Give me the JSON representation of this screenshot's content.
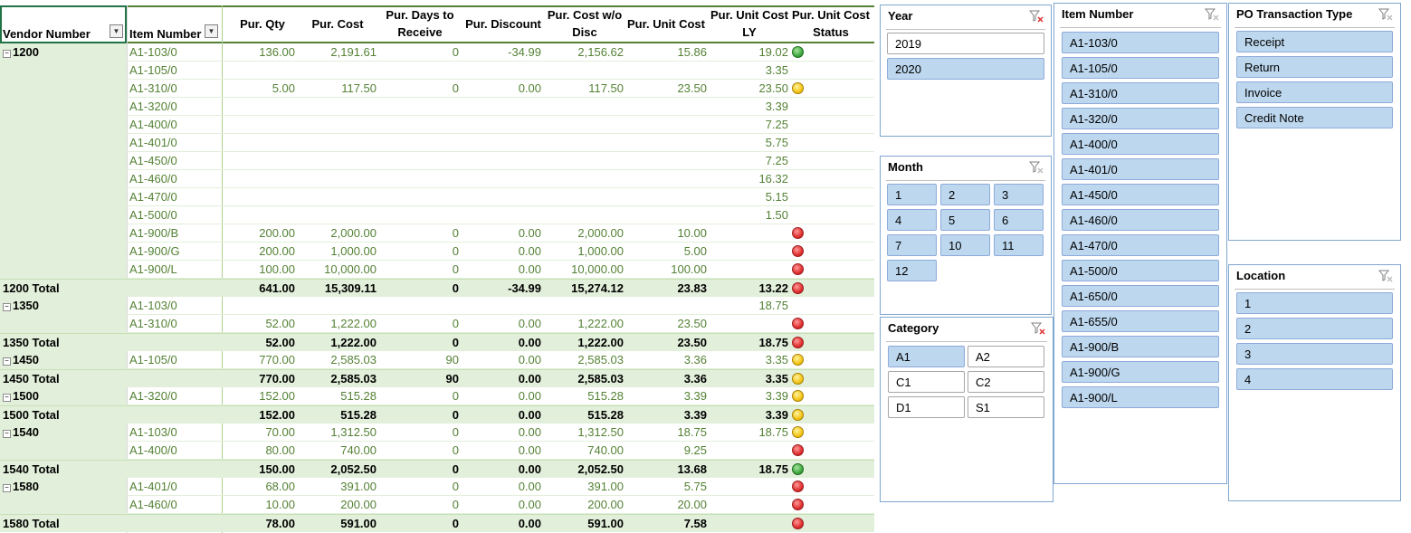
{
  "columns": {
    "vendor_number": "Vendor Number",
    "item_number": "Item Number",
    "pur_qty": "Pur. Qty",
    "pur_cost": "Pur. Cost",
    "pur_days_l1": "Pur. Days to",
    "pur_days_l2": "Receive",
    "pur_discount": "Pur. Discount",
    "pur_cost_wo_l1": "Pur. Cost w/o",
    "pur_cost_wo_l2": "Disc",
    "pur_unit_cost": "Pur. Unit Cost",
    "pur_unit_ly_l1": "Pur. Unit Cost",
    "pur_unit_ly_l2": "LY",
    "status_l1": "Pur. Unit Cost",
    "status_l2": "Status"
  },
  "rows": [
    {
      "type": "data",
      "vendor": "1200",
      "item": "A1-103/0",
      "qty": "136.00",
      "cost": "2,191.61",
      "days": "0",
      "disc": "-34.99",
      "wo": "2,156.62",
      "unit": "15.86",
      "ly": "19.02",
      "status": "green"
    },
    {
      "type": "data",
      "vendor": "",
      "item": "A1-105/0",
      "qty": "",
      "cost": "",
      "days": "",
      "disc": "",
      "wo": "",
      "unit": "",
      "ly": "3.35",
      "status": ""
    },
    {
      "type": "data",
      "vendor": "",
      "item": "A1-310/0",
      "qty": "5.00",
      "cost": "117.50",
      "days": "0",
      "disc": "0.00",
      "wo": "117.50",
      "unit": "23.50",
      "ly": "23.50",
      "status": "yellow"
    },
    {
      "type": "data",
      "vendor": "",
      "item": "A1-320/0",
      "qty": "",
      "cost": "",
      "days": "",
      "disc": "",
      "wo": "",
      "unit": "",
      "ly": "3.39",
      "status": ""
    },
    {
      "type": "data",
      "vendor": "",
      "item": "A1-400/0",
      "qty": "",
      "cost": "",
      "days": "",
      "disc": "",
      "wo": "",
      "unit": "",
      "ly": "7.25",
      "status": ""
    },
    {
      "type": "data",
      "vendor": "",
      "item": "A1-401/0",
      "qty": "",
      "cost": "",
      "days": "",
      "disc": "",
      "wo": "",
      "unit": "",
      "ly": "5.75",
      "status": ""
    },
    {
      "type": "data",
      "vendor": "",
      "item": "A1-450/0",
      "qty": "",
      "cost": "",
      "days": "",
      "disc": "",
      "wo": "",
      "unit": "",
      "ly": "7.25",
      "status": ""
    },
    {
      "type": "data",
      "vendor": "",
      "item": "A1-460/0",
      "qty": "",
      "cost": "",
      "days": "",
      "disc": "",
      "wo": "",
      "unit": "",
      "ly": "16.32",
      "status": ""
    },
    {
      "type": "data",
      "vendor": "",
      "item": "A1-470/0",
      "qty": "",
      "cost": "",
      "days": "",
      "disc": "",
      "wo": "",
      "unit": "",
      "ly": "5.15",
      "status": ""
    },
    {
      "type": "data",
      "vendor": "",
      "item": "A1-500/0",
      "qty": "",
      "cost": "",
      "days": "",
      "disc": "",
      "wo": "",
      "unit": "",
      "ly": "1.50",
      "status": ""
    },
    {
      "type": "data",
      "vendor": "",
      "item": "A1-900/B",
      "qty": "200.00",
      "cost": "2,000.00",
      "days": "0",
      "disc": "0.00",
      "wo": "2,000.00",
      "unit": "10.00",
      "ly": "",
      "status": "red"
    },
    {
      "type": "data",
      "vendor": "",
      "item": "A1-900/G",
      "qty": "200.00",
      "cost": "1,000.00",
      "days": "0",
      "disc": "0.00",
      "wo": "1,000.00",
      "unit": "5.00",
      "ly": "",
      "status": "red"
    },
    {
      "type": "data",
      "vendor": "",
      "item": "A1-900/L",
      "qty": "100.00",
      "cost": "10,000.00",
      "days": "0",
      "disc": "0.00",
      "wo": "10,000.00",
      "unit": "100.00",
      "ly": "",
      "status": "red"
    },
    {
      "type": "total",
      "vendor": "1200 Total",
      "item": "",
      "qty": "641.00",
      "cost": "15,309.11",
      "days": "0",
      "disc": "-34.99",
      "wo": "15,274.12",
      "unit": "23.83",
      "ly": "13.22",
      "status": "red"
    },
    {
      "type": "data",
      "vendor": "1350",
      "item": "A1-103/0",
      "qty": "",
      "cost": "",
      "days": "",
      "disc": "",
      "wo": "",
      "unit": "",
      "ly": "18.75",
      "status": ""
    },
    {
      "type": "data",
      "vendor": "",
      "item": "A1-310/0",
      "qty": "52.00",
      "cost": "1,222.00",
      "days": "0",
      "disc": "0.00",
      "wo": "1,222.00",
      "unit": "23.50",
      "ly": "",
      "status": "red"
    },
    {
      "type": "total",
      "vendor": "1350 Total",
      "item": "",
      "qty": "52.00",
      "cost": "1,222.00",
      "days": "0",
      "disc": "0.00",
      "wo": "1,222.00",
      "unit": "23.50",
      "ly": "18.75",
      "status": "red"
    },
    {
      "type": "data",
      "vendor": "1450",
      "item": "A1-105/0",
      "qty": "770.00",
      "cost": "2,585.03",
      "days": "90",
      "disc": "0.00",
      "wo": "2,585.03",
      "unit": "3.36",
      "ly": "3.35",
      "status": "yellow"
    },
    {
      "type": "total",
      "vendor": "1450 Total",
      "item": "",
      "qty": "770.00",
      "cost": "2,585.03",
      "days": "90",
      "disc": "0.00",
      "wo": "2,585.03",
      "unit": "3.36",
      "ly": "3.35",
      "status": "yellow"
    },
    {
      "type": "data",
      "vendor": "1500",
      "item": "A1-320/0",
      "qty": "152.00",
      "cost": "515.28",
      "days": "0",
      "disc": "0.00",
      "wo": "515.28",
      "unit": "3.39",
      "ly": "3.39",
      "status": "yellow"
    },
    {
      "type": "total",
      "vendor": "1500 Total",
      "item": "",
      "qty": "152.00",
      "cost": "515.28",
      "days": "0",
      "disc": "0.00",
      "wo": "515.28",
      "unit": "3.39",
      "ly": "3.39",
      "status": "yellow"
    },
    {
      "type": "data",
      "vendor": "1540",
      "item": "A1-103/0",
      "qty": "70.00",
      "cost": "1,312.50",
      "days": "0",
      "disc": "0.00",
      "wo": "1,312.50",
      "unit": "18.75",
      "ly": "18.75",
      "status": "yellow"
    },
    {
      "type": "data",
      "vendor": "",
      "item": "A1-400/0",
      "qty": "80.00",
      "cost": "740.00",
      "days": "0",
      "disc": "0.00",
      "wo": "740.00",
      "unit": "9.25",
      "ly": "",
      "status": "red"
    },
    {
      "type": "total",
      "vendor": "1540 Total",
      "item": "",
      "qty": "150.00",
      "cost": "2,052.50",
      "days": "0",
      "disc": "0.00",
      "wo": "2,052.50",
      "unit": "13.68",
      "ly": "18.75",
      "status": "green"
    },
    {
      "type": "data",
      "vendor": "1580",
      "item": "A1-401/0",
      "qty": "68.00",
      "cost": "391.00",
      "days": "0",
      "disc": "0.00",
      "wo": "391.00",
      "unit": "5.75",
      "ly": "",
      "status": "red"
    },
    {
      "type": "data",
      "vendor": "",
      "item": "A1-460/0",
      "qty": "10.00",
      "cost": "200.00",
      "days": "0",
      "disc": "0.00",
      "wo": "200.00",
      "unit": "20.00",
      "ly": "",
      "status": "red"
    },
    {
      "type": "total",
      "vendor": "1580 Total",
      "item": "",
      "qty": "78.00",
      "cost": "591.00",
      "days": "0",
      "disc": "0.00",
      "wo": "591.00",
      "unit": "7.58",
      "ly": "",
      "status": "red"
    }
  ],
  "slicers": {
    "year": {
      "title": "Year",
      "items": [
        {
          "label": "2019",
          "selected": false
        },
        {
          "label": "2020",
          "selected": true
        }
      ]
    },
    "month": {
      "title": "Month",
      "items": [
        {
          "label": "1",
          "selected": true
        },
        {
          "label": "2",
          "selected": true
        },
        {
          "label": "3",
          "selected": true
        },
        {
          "label": "4",
          "selected": true
        },
        {
          "label": "5",
          "selected": true
        },
        {
          "label": "6",
          "selected": true
        },
        {
          "label": "7",
          "selected": true
        },
        {
          "label": "10",
          "selected": true
        },
        {
          "label": "11",
          "selected": true
        },
        {
          "label": "12",
          "selected": true
        }
      ]
    },
    "category": {
      "title": "Category",
      "items": [
        {
          "label": "A1",
          "selected": true
        },
        {
          "label": "A2",
          "selected": false
        },
        {
          "label": "C1",
          "selected": false
        },
        {
          "label": "C2",
          "selected": false
        },
        {
          "label": "D1",
          "selected": false
        },
        {
          "label": "S1",
          "selected": false
        }
      ]
    },
    "item_number": {
      "title": "Item Number",
      "items": [
        {
          "label": "A1-103/0",
          "selected": true
        },
        {
          "label": "A1-105/0",
          "selected": true
        },
        {
          "label": "A1-310/0",
          "selected": true
        },
        {
          "label": "A1-320/0",
          "selected": true
        },
        {
          "label": "A1-400/0",
          "selected": true
        },
        {
          "label": "A1-401/0",
          "selected": true
        },
        {
          "label": "A1-450/0",
          "selected": true
        },
        {
          "label": "A1-460/0",
          "selected": true
        },
        {
          "label": "A1-470/0",
          "selected": true
        },
        {
          "label": "A1-500/0",
          "selected": true
        },
        {
          "label": "A1-650/0",
          "selected": true
        },
        {
          "label": "A1-655/0",
          "selected": true
        },
        {
          "label": "A1-900/B",
          "selected": true
        },
        {
          "label": "A1-900/G",
          "selected": true
        },
        {
          "label": "A1-900/L",
          "selected": true
        }
      ]
    },
    "po_type": {
      "title": "PO Transaction Type",
      "items": [
        {
          "label": "Receipt",
          "selected": true
        },
        {
          "label": "Return",
          "selected": true
        },
        {
          "label": "Invoice",
          "selected": true
        },
        {
          "label": "Credit Note",
          "selected": true
        }
      ]
    },
    "location": {
      "title": "Location",
      "items": [
        {
          "label": "1",
          "selected": true
        },
        {
          "label": "2",
          "selected": true
        },
        {
          "label": "3",
          "selected": true
        },
        {
          "label": "4",
          "selected": true
        }
      ]
    }
  },
  "colors": {
    "status_red": "#e03030",
    "status_yellow": "#f5c518",
    "status_green": "#3fa83f",
    "slicer_selected": "#bdd7ee",
    "total_row": "#e2efda"
  }
}
